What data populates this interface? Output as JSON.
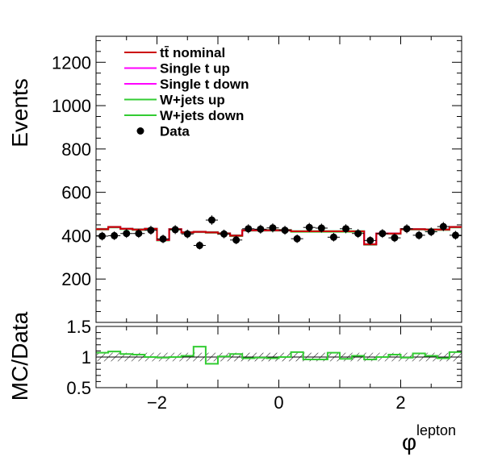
{
  "chart_data": [
    {
      "type": "histogram",
      "panel": "main",
      "ylabel": "Events",
      "xlim": [
        -3.0,
        3.0
      ],
      "ylim": [
        0,
        1320
      ],
      "yticks": [
        200,
        400,
        600,
        800,
        1000,
        1200
      ],
      "bin_width": 0.2,
      "x": [
        -2.9,
        -2.7,
        -2.5,
        -2.3,
        -2.1,
        -1.9,
        -1.7,
        -1.5,
        -1.3,
        -1.1,
        -0.9,
        -0.7,
        -0.5,
        -0.3,
        -0.1,
        0.1,
        0.3,
        0.5,
        0.7,
        0.9,
        1.1,
        1.3,
        1.5,
        1.7,
        1.9,
        2.1,
        2.3,
        2.5,
        2.7,
        2.9
      ],
      "series": [
        {
          "name": "tt̄ nominal",
          "color": "#cc0000",
          "kind": "step",
          "values": [
            430,
            440,
            432,
            428,
            432,
            380,
            430,
            415,
            418,
            415,
            410,
            400,
            425,
            425,
            425,
            425,
            420,
            420,
            420,
            420,
            420,
            420,
            360,
            410,
            410,
            430,
            430,
            428,
            428,
            440
          ]
        },
        {
          "name": "Single t up",
          "color": "#ff00ff",
          "kind": "step",
          "values": [
            430,
            440,
            432,
            428,
            432,
            380,
            430,
            415,
            418,
            415,
            410,
            400,
            425,
            425,
            425,
            425,
            420,
            420,
            420,
            420,
            420,
            420,
            360,
            410,
            410,
            430,
            430,
            428,
            428,
            440
          ]
        },
        {
          "name": "Single t down",
          "color": "#ff00ff",
          "kind": "step",
          "values": [
            430,
            440,
            432,
            428,
            432,
            380,
            430,
            415,
            418,
            415,
            410,
            400,
            425,
            425,
            425,
            425,
            420,
            420,
            420,
            420,
            420,
            420,
            360,
            410,
            410,
            430,
            430,
            428,
            428,
            440
          ]
        },
        {
          "name": "W+jets up",
          "color": "#33cc33",
          "kind": "step",
          "values": [
            432,
            441,
            433,
            430,
            433,
            381,
            431,
            417,
            419,
            417,
            412,
            402,
            427,
            427,
            427,
            427,
            421,
            421,
            421,
            421,
            421,
            421,
            361,
            411,
            411,
            431,
            431,
            430,
            430,
            441
          ]
        },
        {
          "name": "W+jets down",
          "color": "#33cc33",
          "kind": "step",
          "values": [
            428,
            438,
            430,
            426,
            430,
            378,
            428,
            413,
            416,
            413,
            408,
            398,
            423,
            423,
            423,
            423,
            418,
            418,
            418,
            418,
            418,
            418,
            358,
            408,
            408,
            428,
            428,
            426,
            426,
            438
          ]
        },
        {
          "name": "Data",
          "color": "#000000",
          "kind": "points",
          "values": [
            398,
            400,
            410,
            410,
            425,
            385,
            428,
            408,
            355,
            472,
            408,
            380,
            432,
            430,
            436,
            425,
            386,
            438,
            435,
            393,
            432,
            410,
            378,
            410,
            390,
            432,
            402,
            418,
            442,
            402
          ]
        }
      ],
      "legend": "top-left"
    },
    {
      "type": "histogram",
      "panel": "ratio",
      "xlabel": "φ^lepton",
      "ylabel": "MC/Data",
      "xlim": [
        -3.0,
        3.0
      ],
      "ylim": [
        0.5,
        1.5
      ],
      "yticks": [
        0.5,
        1,
        1.5
      ],
      "xticks": [
        -2,
        0,
        2
      ],
      "reference": 1.0,
      "uncertainty_band": [
        0.93,
        1.07
      ],
      "ratio": [
        1.07,
        1.09,
        1.05,
        1.04,
        1.0,
        0.99,
        1.0,
        1.02,
        1.17,
        0.89,
        1.01,
        1.05,
        0.98,
        0.99,
        0.98,
        1.0,
        1.08,
        0.96,
        0.96,
        1.07,
        0.97,
        1.02,
        0.96,
        1.0,
        1.04,
        0.99,
        1.06,
        1.02,
        0.98,
        1.08
      ]
    }
  ]
}
